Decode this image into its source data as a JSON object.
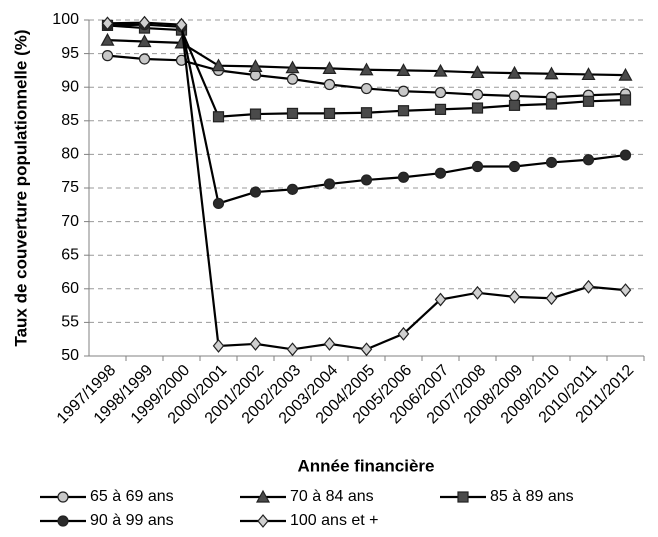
{
  "chart_data": {
    "type": "line",
    "x_label": "Année financière",
    "y_label": "Taux de couverture populationnelle (%)",
    "categories": [
      "1997/1998",
      "1998/1999",
      "1999/2000",
      "2000/2001",
      "2001/2002",
      "2002/2003",
      "2003/2004",
      "2004/2005",
      "2005/2006",
      "2006/2007",
      "2007/2008",
      "2008/2009",
      "2009/2010",
      "2010/2011",
      "2011/2012"
    ],
    "ylim": [
      50,
      100
    ],
    "yticks": [
      50,
      55,
      60,
      65,
      70,
      75,
      80,
      85,
      90,
      95,
      100
    ],
    "grid": true,
    "legend": "bottom",
    "series": [
      {
        "name": "65 à 69 ans",
        "color": "#c8c8c8",
        "marker": "circle",
        "values": [
          94.7,
          94.2,
          94.0,
          92.5,
          91.8,
          91.2,
          90.4,
          89.8,
          89.4,
          89.2,
          88.9,
          88.7,
          88.5,
          88.8,
          89.0
        ]
      },
      {
        "name": "70 à 84 ans",
        "color": "#4a4a4a",
        "marker": "triangle",
        "values": [
          97.0,
          96.8,
          96.6,
          93.2,
          93.1,
          92.9,
          92.8,
          92.6,
          92.5,
          92.4,
          92.2,
          92.1,
          92.0,
          91.9,
          91.8
        ]
      },
      {
        "name": "85 à 89 ans",
        "color": "#4a4a4a",
        "marker": "square",
        "values": [
          99.2,
          98.8,
          98.5,
          85.6,
          86.0,
          86.1,
          86.1,
          86.2,
          86.5,
          86.7,
          86.9,
          87.3,
          87.5,
          87.9,
          88.1
        ]
      },
      {
        "name": "90 à 99 ans",
        "color": "#2a2a2a",
        "marker": "circle",
        "values": [
          99.2,
          99.3,
          99.0,
          72.7,
          74.4,
          74.8,
          75.6,
          76.2,
          76.6,
          77.2,
          78.2,
          78.2,
          78.8,
          79.2,
          79.9
        ]
      },
      {
        "name": "100 ans et +",
        "color": "#d0d0d0",
        "marker": "diamond",
        "values": [
          99.5,
          99.6,
          99.3,
          51.5,
          51.8,
          51.0,
          51.8,
          51.0,
          53.3,
          58.4,
          59.4,
          58.8,
          58.6,
          60.3,
          59.8
        ]
      }
    ]
  }
}
